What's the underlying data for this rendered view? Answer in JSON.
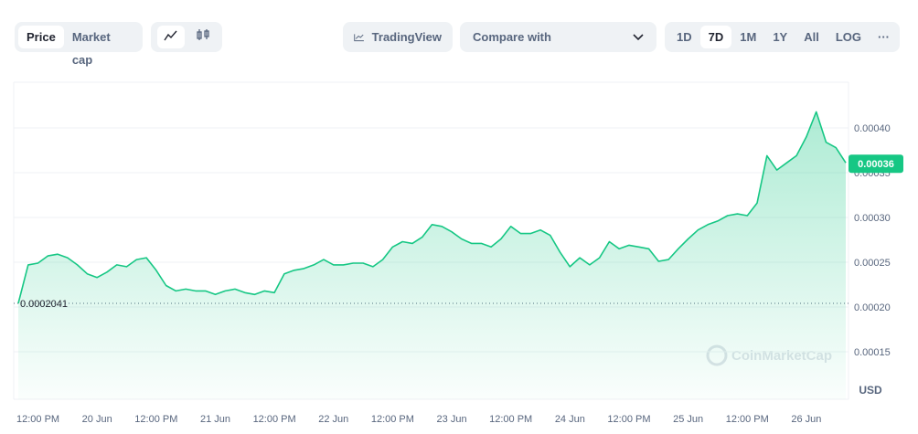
{
  "toolbar": {
    "price": "Price",
    "market_cap": "Market cap",
    "tradingview": "TradingView",
    "compare": "Compare with",
    "ranges": [
      "1D",
      "7D",
      "1M",
      "1Y",
      "All"
    ],
    "log": "LOG",
    "more": "···"
  },
  "chart_data": {
    "type": "area",
    "color": "#16c784",
    "grid": true,
    "watermark": "CoinMarketCap",
    "unit": "USD",
    "start_price": 0.0002041,
    "current_price": 0.00036,
    "ylim": [
      0.0001,
      0.00045
    ],
    "yticks": [
      0.00015,
      {
        "value": 0.0002,
        "label": "0.00020"
      },
      0.00025,
      {
        "value": 0.0003,
        "label": "0.00030"
      },
      0.00035,
      {
        "value": 0.0004,
        "label": "0.00040"
      }
    ],
    "categories": [
      null,
      null,
      "12:00 PM",
      null,
      null,
      null,
      null,
      null,
      "20 Jun",
      null,
      null,
      null,
      null,
      null,
      "12:00 PM",
      null,
      null,
      null,
      null,
      null,
      "21 Jun",
      null,
      null,
      null,
      null,
      null,
      "12:00 PM",
      null,
      null,
      null,
      null,
      null,
      "22 Jun",
      null,
      null,
      null,
      null,
      null,
      "12:00 PM",
      null,
      null,
      null,
      null,
      null,
      "23 Jun",
      null,
      null,
      null,
      null,
      null,
      "12:00 PM",
      null,
      null,
      null,
      null,
      null,
      "24 Jun",
      null,
      null,
      null,
      null,
      null,
      "12:00 PM",
      null,
      null,
      null,
      null,
      null,
      "25 Jun",
      null,
      null,
      null,
      null,
      null,
      "12:00 PM",
      null,
      null,
      null,
      null,
      null,
      "26 Jun",
      null,
      null,
      null,
      null
    ],
    "values": [
      0.0002041,
      0.000247,
      0.000249,
      0.000257,
      0.000259,
      0.000255,
      0.000247,
      0.000237,
      0.000233,
      0.000239,
      0.000247,
      0.000245,
      0.000253,
      0.000255,
      0.000241,
      0.000224,
      0.000218,
      0.00022,
      0.000218,
      0.000218,
      0.000214,
      0.000218,
      0.00022,
      0.000216,
      0.000214,
      0.000218,
      0.000216,
      0.000237,
      0.000241,
      0.000243,
      0.000247,
      0.000253,
      0.000247,
      0.000247,
      0.000249,
      0.000249,
      0.000245,
      0.000253,
      0.000267,
      0.000273,
      0.000271,
      0.000278,
      0.000292,
      0.00029,
      0.000284,
      0.000276,
      0.000271,
      0.000271,
      0.000267,
      0.000276,
      0.00029,
      0.000282,
      0.000282,
      0.000286,
      0.00028,
      0.000261,
      0.000245,
      0.000255,
      0.000247,
      0.000255,
      0.000273,
      0.000265,
      0.000269,
      0.000267,
      0.000265,
      0.000251,
      0.000253,
      0.000265,
      0.000276,
      0.000286,
      0.000292,
      0.000296,
      0.000302,
      0.000304,
      0.000302,
      0.000316,
      0.000369,
      0.000353,
      0.000361,
      0.000369,
      0.00039,
      0.000418,
      0.000384,
      0.000378,
      0.000361
    ]
  }
}
